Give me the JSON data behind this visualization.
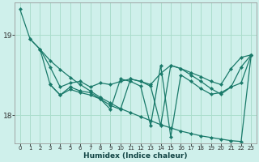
{
  "xlabel": "Humidex (Indice chaleur)",
  "bg_color": "#cff0eb",
  "grid_color": "#aaddcc",
  "line_color": "#1a7a6a",
  "xlim": [
    -0.5,
    23.5
  ],
  "ylim": [
    17.65,
    19.4
  ],
  "yticks": [
    18,
    19
  ],
  "xticks": [
    0,
    1,
    2,
    3,
    4,
    5,
    6,
    7,
    8,
    9,
    10,
    11,
    12,
    13,
    14,
    15,
    16,
    17,
    18,
    19,
    20,
    21,
    22,
    23
  ],
  "series": [
    {
      "x": [
        0,
        1,
        2,
        3,
        4,
        5,
        6,
        7,
        8,
        9,
        10,
        11,
        12,
        13,
        14,
        15,
        16,
        17,
        18,
        19,
        20,
        21,
        22,
        23
      ],
      "y": [
        19.32,
        18.95,
        18.82,
        18.68,
        18.57,
        18.47,
        18.38,
        18.3,
        18.22,
        18.15,
        18.08,
        18.03,
        17.98,
        17.93,
        17.88,
        17.84,
        17.8,
        17.77,
        17.74,
        17.72,
        17.7,
        17.68,
        17.67,
        18.75
      ]
    },
    {
      "x": [
        1,
        2,
        3,
        4,
        5,
        6,
        7,
        8,
        9,
        10,
        11,
        12,
        13,
        14,
        15,
        16,
        17,
        18,
        19,
        20,
        21,
        22,
        23
      ],
      "y": [
        18.95,
        18.82,
        18.6,
        18.35,
        18.4,
        18.42,
        18.35,
        18.4,
        18.38,
        18.42,
        18.45,
        18.42,
        18.38,
        18.52,
        18.62,
        18.58,
        18.53,
        18.48,
        18.42,
        18.38,
        18.58,
        18.72,
        18.75
      ]
    },
    {
      "x": [
        2,
        3,
        4,
        5,
        6,
        7,
        8,
        9,
        10,
        11,
        12,
        13,
        14,
        15,
        16,
        17,
        18,
        19,
        20,
        21,
        22,
        23
      ],
      "y": [
        18.82,
        18.38,
        18.25,
        18.32,
        18.28,
        18.25,
        18.2,
        18.12,
        18.07,
        18.45,
        18.42,
        18.36,
        17.87,
        18.62,
        18.58,
        18.5,
        18.42,
        18.33,
        18.26,
        18.35,
        18.6,
        18.75
      ]
    },
    {
      "x": [
        3,
        4,
        5,
        6,
        7,
        8,
        9,
        10,
        11,
        12,
        13,
        14,
        15,
        16,
        17,
        18,
        19,
        20,
        21,
        22,
        23
      ],
      "y": [
        18.38,
        18.25,
        18.35,
        18.3,
        18.28,
        18.2,
        18.07,
        18.45,
        18.42,
        18.36,
        17.87,
        18.62,
        17.73,
        18.5,
        18.42,
        18.33,
        18.26,
        18.28,
        18.35,
        18.4,
        18.75
      ]
    }
  ],
  "markersize": 2.2,
  "linewidth": 0.9
}
